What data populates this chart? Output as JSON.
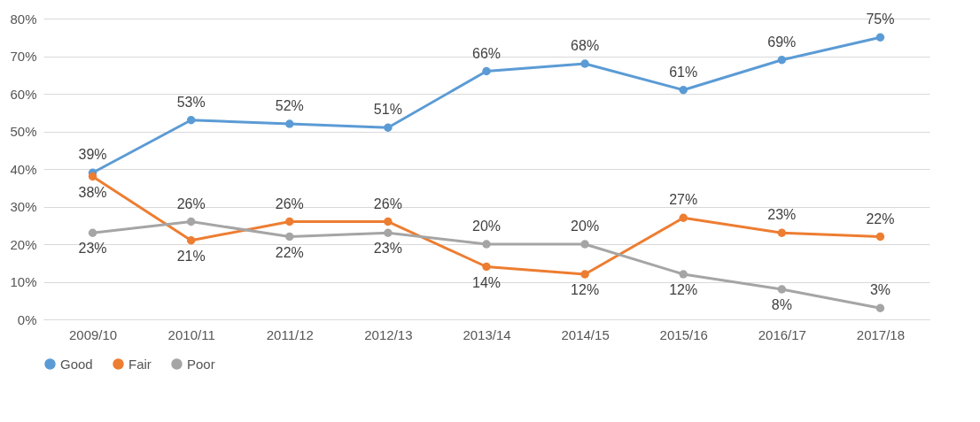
{
  "chart_data": {
    "type": "line",
    "categories": [
      "2009/10",
      "2010/11",
      "2011/12",
      "2012/13",
      "2013/14",
      "2014/15",
      "2015/16",
      "2016/17",
      "2017/18"
    ],
    "series": [
      {
        "name": "Good",
        "color": "#5b9bd5",
        "values": [
          39,
          53,
          52,
          51,
          66,
          68,
          61,
          69,
          75
        ],
        "value_labels": [
          "39%",
          "53%",
          "52%",
          "51%",
          "66%",
          "68%",
          "61%",
          "69%",
          "75%"
        ]
      },
      {
        "name": "Fair",
        "color": "#ed7d31",
        "values": [
          38,
          21,
          26,
          26,
          14,
          12,
          27,
          23,
          22
        ],
        "value_labels": [
          "38%",
          "21%",
          "26%",
          "26%",
          "14%",
          "12%",
          "27%",
          "23%",
          "22%"
        ]
      },
      {
        "name": "Poor",
        "color": "#a5a5a5",
        "values": [
          23,
          26,
          22,
          23,
          20,
          20,
          12,
          8,
          3
        ],
        "value_labels": [
          "23%",
          "26%",
          "22%",
          "23%",
          "20%",
          "20%",
          "12%",
          "8%",
          "3%"
        ]
      }
    ],
    "ylim": [
      0,
      80
    ],
    "yticks": [
      {
        "value": 0,
        "label": "0%"
      },
      {
        "value": 10,
        "label": "10%"
      },
      {
        "value": 20,
        "label": "20%"
      },
      {
        "value": 30,
        "label": "30%"
      },
      {
        "value": 40,
        "label": "40%"
      },
      {
        "value": 50,
        "label": "50%"
      },
      {
        "value": 60,
        "label": "60%"
      },
      {
        "value": 70,
        "label": "70%"
      },
      {
        "value": 80,
        "label": "80%"
      }
    ],
    "grid": "y",
    "legend": "bottom",
    "marker": "circle"
  }
}
